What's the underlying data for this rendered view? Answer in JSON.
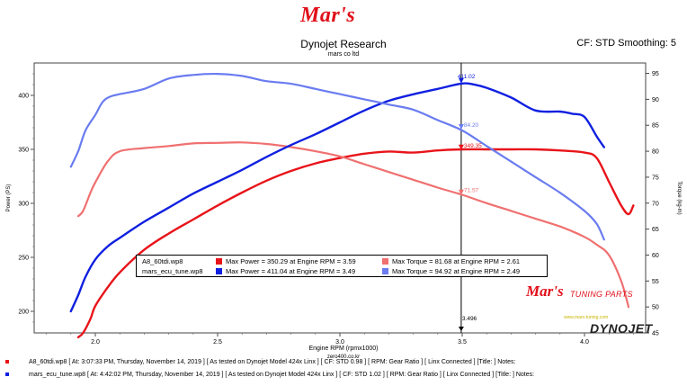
{
  "header": {
    "logo_text": "Mar's",
    "title": "Dynojet Research",
    "subtitle": "mars co ltd",
    "cf_info": "CF: STD Smoothing: 5"
  },
  "branding": {
    "mars_tuning_logo": "Mar's",
    "tuning_parts": "TUNING PARTS",
    "dynojet_logo": "DYNOJET",
    "small_url": "www.mars-tuning.com",
    "watermark": "zero400.co.kr"
  },
  "legend": [
    {
      "file": "A8_60tdi.wp8",
      "power_text": "Max Power = 350.29 at Engine RPM = 3.59",
      "torque_text": "Max Torque = 81.68 at Engine RPM = 2.61",
      "power_color": "#e8141a",
      "torque_color": "#f07070"
    },
    {
      "file": "mars_ecu_tune.wp8",
      "power_text": "Max Power = 411.04 at Engine RPM = 3.49",
      "torque_text": "Max Torque = 94.92 at Engine RPM = 2.49",
      "power_color": "#1020e0",
      "torque_color": "#6a7cf0"
    }
  ],
  "footer": [
    {
      "text": "A8_60tdi.wp8 [ At: 3:07:33 PM, Thursday, November 14, 2019 ] [ As tested on Dynojet Model 424x Linx ] [ CF: STD 0.98 ] [ RPM: Gear Ratio ] [ Linx Connected ] [Title: ]   Notes:",
      "color": "#e8141a"
    },
    {
      "text": "mars_ecu_tune.wp8 [ At: 4:42:02 PM, Thursday, November 14, 2019 ] [ As tested on Dynojet Model 424x Linx ] [ CF: STD 1.02 ] [ RPM: Gear Ratio ] [ Linx Connected ] [Title: ]   Notes:",
      "color": "#1020e0"
    }
  ],
  "chart_data": {
    "type": "line",
    "xlabel": "Engine RPM (rpmx1000)",
    "ylabel_left": "Power (PS)",
    "ylabel_right": "Torque (kg-m)",
    "xlim": [
      1.75,
      4.25
    ],
    "ylim_left": [
      180,
      430
    ],
    "ylim_right": [
      45,
      97
    ],
    "x_ticks": [
      2.0,
      2.5,
      3.0,
      3.5,
      4.0
    ],
    "x_tick_labels": [
      "2.0",
      "2.5",
      "3.0",
      "3.5",
      "4.0"
    ],
    "y_left_ticks": [
      200,
      250,
      300,
      350,
      400
    ],
    "y_right_ticks": [
      45,
      50,
      55,
      60,
      65,
      70,
      75,
      80,
      85,
      90,
      95
    ],
    "grid": false,
    "cursor": {
      "x": 3.496,
      "label": "3.496"
    },
    "markers": [
      {
        "series": "mars_ecu_tune.wp8 power",
        "axis": "left",
        "x": 3.496,
        "y": 411.0,
        "label": "411.02",
        "color": "#1020e0"
      },
      {
        "series": "mars_ecu_tune.wp8 torque",
        "axis": "right",
        "x": 3.496,
        "y": 84.2,
        "label": "84.20",
        "color": "#6a7cf0"
      },
      {
        "series": "A8_60tdi.wp8 power",
        "axis": "left",
        "x": 3.496,
        "y": 349.35,
        "label": "349.35",
        "color": "#e8141a"
      },
      {
        "series": "A8_60tdi.wp8 torque",
        "axis": "right",
        "x": 3.496,
        "y": 71.57,
        "label": "71.57",
        "color": "#f07070"
      }
    ],
    "series": [
      {
        "name": "A8_60tdi.wp8",
        "quantity": "power",
        "axis": "left",
        "color": "#e8141a",
        "width": 2.4,
        "x": [
          1.93,
          1.95,
          1.98,
          2.0,
          2.05,
          2.1,
          2.2,
          2.3,
          2.4,
          2.5,
          2.6,
          2.7,
          2.8,
          2.9,
          3.0,
          3.1,
          3.2,
          3.3,
          3.4,
          3.5,
          3.6,
          3.7,
          3.8,
          3.9,
          4.0,
          4.05,
          4.1,
          4.15,
          4.18,
          4.2
        ],
        "y": [
          176,
          180,
          193,
          205,
          222,
          236,
          257,
          272,
          285,
          298,
          310,
          321,
          330,
          337,
          342,
          346,
          348,
          347,
          349,
          350,
          350,
          350,
          350,
          349,
          347,
          342,
          320,
          298,
          290,
          298
        ]
      },
      {
        "name": "A8_60tdi.wp8",
        "quantity": "torque",
        "axis": "right",
        "color": "#f07070",
        "width": 2.2,
        "x": [
          1.93,
          1.95,
          1.98,
          2.0,
          2.05,
          2.1,
          2.2,
          2.3,
          2.4,
          2.5,
          2.6,
          2.7,
          2.8,
          2.9,
          3.0,
          3.1,
          3.2,
          3.3,
          3.4,
          3.5,
          3.6,
          3.7,
          3.8,
          3.9,
          4.0,
          4.05,
          4.1,
          4.15,
          4.18
        ],
        "y": [
          67.5,
          68.5,
          72,
          74,
          78,
          80,
          80.6,
          81,
          81.5,
          81.6,
          81.7,
          81.4,
          80.8,
          80,
          79,
          77.5,
          76,
          74.5,
          73,
          71.6,
          70,
          68.5,
          67,
          65.5,
          63.5,
          62,
          60,
          55,
          50
        ]
      },
      {
        "name": "mars_ecu_tune.wp8",
        "quantity": "power",
        "axis": "left",
        "color": "#1020e0",
        "width": 2.4,
        "x": [
          1.9,
          1.93,
          1.96,
          2.0,
          2.05,
          2.1,
          2.2,
          2.3,
          2.4,
          2.5,
          2.6,
          2.7,
          2.8,
          2.9,
          3.0,
          3.1,
          3.2,
          3.3,
          3.4,
          3.5,
          3.55,
          3.6,
          3.7,
          3.8,
          3.9,
          3.95,
          4.0,
          4.05,
          4.08
        ],
        "y": [
          200,
          215,
          232,
          248,
          260,
          268,
          283,
          296,
          309,
          320,
          331,
          343,
          354,
          364,
          375,
          386,
          395,
          401,
          406,
          411,
          410,
          407,
          398,
          386,
          385,
          383,
          380,
          362,
          352
        ]
      },
      {
        "name": "mars_ecu_tune.wp8",
        "quantity": "torque",
        "axis": "right",
        "color": "#6a7cf0",
        "width": 2.2,
        "x": [
          1.9,
          1.93,
          1.96,
          2.0,
          2.03,
          2.06,
          2.1,
          2.2,
          2.3,
          2.4,
          2.5,
          2.6,
          2.7,
          2.8,
          2.9,
          3.0,
          3.1,
          3.2,
          3.3,
          3.4,
          3.5,
          3.6,
          3.7,
          3.8,
          3.9,
          4.0,
          4.05,
          4.08
        ],
        "y": [
          77,
          80,
          84,
          87,
          89.5,
          90.5,
          91,
          92,
          94,
          94.7,
          94.9,
          94.5,
          93.5,
          93,
          92,
          91,
          90,
          89,
          88,
          86,
          84,
          81,
          78,
          75,
          72,
          68.5,
          66,
          63
        ]
      }
    ]
  }
}
